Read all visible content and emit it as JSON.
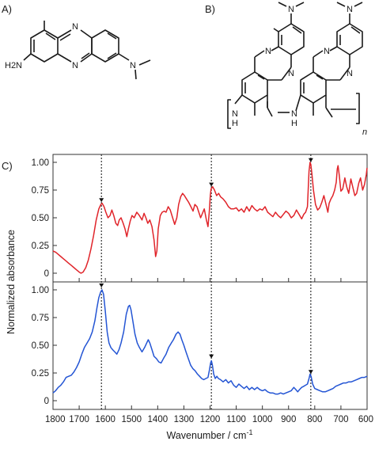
{
  "panels": {
    "a": "A)",
    "b": "B)",
    "c": "C)"
  },
  "molecule_a": {
    "atoms": [
      {
        "id": "ring-n-top",
        "text": "N"
      },
      {
        "id": "ring-n-bottom",
        "text": "N"
      },
      {
        "id": "amine",
        "text": "H2N"
      },
      {
        "id": "dimethylamino",
        "text": "N"
      }
    ]
  },
  "molecule_b": {
    "atoms": [
      {
        "id": "top-n-left",
        "text": "N"
      },
      {
        "id": "top-n-right",
        "text": "N"
      },
      {
        "id": "ring-n-1",
        "text": "N"
      },
      {
        "id": "ring-n-2",
        "text": "N"
      },
      {
        "id": "ring-n-3",
        "text": "N"
      },
      {
        "id": "ring-n-4",
        "text": "N"
      },
      {
        "id": "nh-left",
        "text": "N"
      },
      {
        "id": "nh-left-h",
        "text": "H"
      },
      {
        "id": "nh-mid",
        "text": "N"
      },
      {
        "id": "nh-mid-h",
        "text": "H"
      },
      {
        "id": "repeat-n",
        "text": "n"
      }
    ]
  },
  "chart_data": {
    "type": "line",
    "xlabel": "Wavenumber / cm-1",
    "ylabel": "Normalized absorbance",
    "xlim": [
      1800,
      600
    ],
    "x_reversed": true,
    "x_ticks": [
      1800,
      1700,
      1600,
      1500,
      1400,
      1300,
      1200,
      1100,
      1000,
      900,
      800,
      700,
      600
    ],
    "ylim": [
      0,
      1
    ],
    "y_ticks": [
      0,
      0.25,
      0.5,
      0.75,
      1.0
    ],
    "y_tick_labels": [
      "0",
      "0.25",
      "0.50",
      "0.75",
      "1.00"
    ],
    "grid": false,
    "reference_lines": [
      1615,
      1195,
      815
    ],
    "series": [
      {
        "color": "#e0242a",
        "panel": "top",
        "points": [
          [
            1800,
            0.2
          ],
          [
            1790,
            0.19
          ],
          [
            1780,
            0.17
          ],
          [
            1770,
            0.15
          ],
          [
            1760,
            0.13
          ],
          [
            1750,
            0.11
          ],
          [
            1740,
            0.09
          ],
          [
            1730,
            0.07
          ],
          [
            1720,
            0.05
          ],
          [
            1710,
            0.03
          ],
          [
            1700,
            0.01
          ],
          [
            1693,
            0.0
          ],
          [
            1685,
            0.01
          ],
          [
            1675,
            0.05
          ],
          [
            1665,
            0.12
          ],
          [
            1655,
            0.22
          ],
          [
            1645,
            0.34
          ],
          [
            1635,
            0.48
          ],
          [
            1625,
            0.58
          ],
          [
            1617,
            0.62
          ],
          [
            1612,
            0.63
          ],
          [
            1605,
            0.6
          ],
          [
            1598,
            0.55
          ],
          [
            1590,
            0.5
          ],
          [
            1582,
            0.52
          ],
          [
            1575,
            0.57
          ],
          [
            1568,
            0.52
          ],
          [
            1560,
            0.45
          ],
          [
            1553,
            0.43
          ],
          [
            1547,
            0.48
          ],
          [
            1540,
            0.5
          ],
          [
            1532,
            0.45
          ],
          [
            1525,
            0.4
          ],
          [
            1518,
            0.33
          ],
          [
            1512,
            0.4
          ],
          [
            1505,
            0.47
          ],
          [
            1498,
            0.52
          ],
          [
            1490,
            0.5
          ],
          [
            1480,
            0.55
          ],
          [
            1470,
            0.52
          ],
          [
            1460,
            0.48
          ],
          [
            1452,
            0.54
          ],
          [
            1445,
            0.5
          ],
          [
            1438,
            0.45
          ],
          [
            1430,
            0.48
          ],
          [
            1422,
            0.42
          ],
          [
            1414,
            0.3
          ],
          [
            1408,
            0.15
          ],
          [
            1403,
            0.2
          ],
          [
            1398,
            0.4
          ],
          [
            1390,
            0.52
          ],
          [
            1383,
            0.55
          ],
          [
            1375,
            0.56
          ],
          [
            1368,
            0.55
          ],
          [
            1360,
            0.6
          ],
          [
            1352,
            0.57
          ],
          [
            1343,
            0.5
          ],
          [
            1335,
            0.44
          ],
          [
            1327,
            0.5
          ],
          [
            1320,
            0.62
          ],
          [
            1312,
            0.69
          ],
          [
            1305,
            0.72
          ],
          [
            1298,
            0.7
          ],
          [
            1290,
            0.67
          ],
          [
            1282,
            0.64
          ],
          [
            1273,
            0.6
          ],
          [
            1265,
            0.56
          ],
          [
            1258,
            0.62
          ],
          [
            1250,
            0.6
          ],
          [
            1243,
            0.55
          ],
          [
            1236,
            0.5
          ],
          [
            1229,
            0.54
          ],
          [
            1222,
            0.58
          ],
          [
            1214,
            0.48
          ],
          [
            1208,
            0.42
          ],
          [
            1203,
            0.55
          ],
          [
            1199,
            0.7
          ],
          [
            1196,
            0.76
          ],
          [
            1190,
            0.78
          ],
          [
            1183,
            0.75
          ],
          [
            1175,
            0.7
          ],
          [
            1167,
            0.72
          ],
          [
            1160,
            0.69
          ],
          [
            1150,
            0.67
          ],
          [
            1140,
            0.64
          ],
          [
            1130,
            0.6
          ],
          [
            1120,
            0.58
          ],
          [
            1110,
            0.58
          ],
          [
            1100,
            0.59
          ],
          [
            1090,
            0.56
          ],
          [
            1080,
            0.58
          ],
          [
            1070,
            0.55
          ],
          [
            1060,
            0.6
          ],
          [
            1050,
            0.56
          ],
          [
            1040,
            0.61
          ],
          [
            1030,
            0.58
          ],
          [
            1020,
            0.56
          ],
          [
            1010,
            0.58
          ],
          [
            1000,
            0.57
          ],
          [
            990,
            0.6
          ],
          [
            980,
            0.55
          ],
          [
            970,
            0.53
          ],
          [
            960,
            0.51
          ],
          [
            950,
            0.55
          ],
          [
            940,
            0.52
          ],
          [
            930,
            0.5
          ],
          [
            920,
            0.53
          ],
          [
            910,
            0.56
          ],
          [
            900,
            0.54
          ],
          [
            890,
            0.5
          ],
          [
            880,
            0.52
          ],
          [
            870,
            0.57
          ],
          [
            860,
            0.53
          ],
          [
            850,
            0.49
          ],
          [
            842,
            0.53
          ],
          [
            835,
            0.55
          ],
          [
            828,
            0.6
          ],
          [
            822,
            0.92
          ],
          [
            818,
            1.0
          ],
          [
            815,
            0.98
          ],
          [
            811,
            0.9
          ],
          [
            805,
            0.75
          ],
          [
            797,
            0.62
          ],
          [
            789,
            0.57
          ],
          [
            781,
            0.59
          ],
          [
            773,
            0.64
          ],
          [
            765,
            0.7
          ],
          [
            757,
            0.62
          ],
          [
            750,
            0.55
          ],
          [
            745,
            0.63
          ],
          [
            738,
            0.67
          ],
          [
            731,
            0.7
          ],
          [
            724,
            0.75
          ],
          [
            718,
            0.82
          ],
          [
            714,
            0.94
          ],
          [
            711,
            0.97
          ],
          [
            706,
            0.88
          ],
          [
            700,
            0.74
          ],
          [
            693,
            0.76
          ],
          [
            685,
            0.86
          ],
          [
            678,
            0.78
          ],
          [
            670,
            0.72
          ],
          [
            662,
            0.85
          ],
          [
            655,
            0.78
          ],
          [
            647,
            0.7
          ],
          [
            640,
            0.72
          ],
          [
            632,
            0.81
          ],
          [
            625,
            0.86
          ],
          [
            617,
            0.75
          ],
          [
            610,
            0.8
          ],
          [
            603,
            0.89
          ],
          [
            600,
            0.95
          ]
        ]
      },
      {
        "color": "#2455d4",
        "panel": "bottom",
        "points": [
          [
            1800,
            0.07
          ],
          [
            1790,
            0.09
          ],
          [
            1780,
            0.12
          ],
          [
            1770,
            0.14
          ],
          [
            1760,
            0.17
          ],
          [
            1750,
            0.21
          ],
          [
            1740,
            0.22
          ],
          [
            1730,
            0.23
          ],
          [
            1720,
            0.26
          ],
          [
            1710,
            0.3
          ],
          [
            1700,
            0.35
          ],
          [
            1690,
            0.42
          ],
          [
            1680,
            0.48
          ],
          [
            1670,
            0.52
          ],
          [
            1660,
            0.56
          ],
          [
            1650,
            0.62
          ],
          [
            1640,
            0.72
          ],
          [
            1632,
            0.84
          ],
          [
            1625,
            0.93
          ],
          [
            1618,
            0.98
          ],
          [
            1613,
            1.0
          ],
          [
            1607,
            0.96
          ],
          [
            1600,
            0.8
          ],
          [
            1593,
            0.62
          ],
          [
            1586,
            0.52
          ],
          [
            1579,
            0.48
          ],
          [
            1572,
            0.46
          ],
          [
            1564,
            0.44
          ],
          [
            1556,
            0.42
          ],
          [
            1548,
            0.46
          ],
          [
            1540,
            0.52
          ],
          [
            1530,
            0.62
          ],
          [
            1520,
            0.78
          ],
          [
            1512,
            0.85
          ],
          [
            1507,
            0.86
          ],
          [
            1502,
            0.82
          ],
          [
            1495,
            0.72
          ],
          [
            1487,
            0.6
          ],
          [
            1478,
            0.52
          ],
          [
            1470,
            0.48
          ],
          [
            1460,
            0.44
          ],
          [
            1450,
            0.48
          ],
          [
            1442,
            0.52
          ],
          [
            1436,
            0.55
          ],
          [
            1430,
            0.52
          ],
          [
            1422,
            0.46
          ],
          [
            1414,
            0.4
          ],
          [
            1405,
            0.38
          ],
          [
            1396,
            0.35
          ],
          [
            1387,
            0.34
          ],
          [
            1378,
            0.38
          ],
          [
            1368,
            0.42
          ],
          [
            1358,
            0.48
          ],
          [
            1348,
            0.52
          ],
          [
            1340,
            0.55
          ],
          [
            1330,
            0.6
          ],
          [
            1322,
            0.62
          ],
          [
            1315,
            0.6
          ],
          [
            1308,
            0.55
          ],
          [
            1300,
            0.5
          ],
          [
            1292,
            0.44
          ],
          [
            1283,
            0.38
          ],
          [
            1274,
            0.32
          ],
          [
            1266,
            0.29
          ],
          [
            1257,
            0.27
          ],
          [
            1248,
            0.24
          ],
          [
            1240,
            0.22
          ],
          [
            1232,
            0.2
          ],
          [
            1224,
            0.19
          ],
          [
            1216,
            0.2
          ],
          [
            1208,
            0.21
          ],
          [
            1202,
            0.28
          ],
          [
            1198,
            0.34
          ],
          [
            1195,
            0.36
          ],
          [
            1191,
            0.32
          ],
          [
            1186,
            0.24
          ],
          [
            1180,
            0.2
          ],
          [
            1174,
            0.22
          ],
          [
            1168,
            0.2
          ],
          [
            1160,
            0.19
          ],
          [
            1150,
            0.17
          ],
          [
            1140,
            0.19
          ],
          [
            1130,
            0.16
          ],
          [
            1120,
            0.18
          ],
          [
            1110,
            0.14
          ],
          [
            1100,
            0.12
          ],
          [
            1090,
            0.15
          ],
          [
            1080,
            0.13
          ],
          [
            1070,
            0.11
          ],
          [
            1060,
            0.13
          ],
          [
            1050,
            0.1
          ],
          [
            1040,
            0.12
          ],
          [
            1030,
            0.1
          ],
          [
            1020,
            0.12
          ],
          [
            1010,
            0.1
          ],
          [
            1000,
            0.09
          ],
          [
            990,
            0.1
          ],
          [
            980,
            0.08
          ],
          [
            970,
            0.07
          ],
          [
            960,
            0.07
          ],
          [
            950,
            0.06
          ],
          [
            940,
            0.06
          ],
          [
            930,
            0.07
          ],
          [
            920,
            0.06
          ],
          [
            910,
            0.07
          ],
          [
            900,
            0.08
          ],
          [
            890,
            0.09
          ],
          [
            880,
            0.12
          ],
          [
            872,
            0.1
          ],
          [
            865,
            0.08
          ],
          [
            858,
            0.1
          ],
          [
            850,
            0.12
          ],
          [
            842,
            0.13
          ],
          [
            835,
            0.14
          ],
          [
            828,
            0.15
          ],
          [
            822,
            0.2
          ],
          [
            818,
            0.24
          ],
          [
            814,
            0.22
          ],
          [
            808,
            0.15
          ],
          [
            800,
            0.11
          ],
          [
            790,
            0.1
          ],
          [
            780,
            0.09
          ],
          [
            770,
            0.08
          ],
          [
            760,
            0.08
          ],
          [
            750,
            0.09
          ],
          [
            740,
            0.1
          ],
          [
            730,
            0.11
          ],
          [
            720,
            0.13
          ],
          [
            710,
            0.14
          ],
          [
            700,
            0.15
          ],
          [
            690,
            0.16
          ],
          [
            680,
            0.16
          ],
          [
            670,
            0.17
          ],
          [
            660,
            0.17
          ],
          [
            650,
            0.18
          ],
          [
            640,
            0.19
          ],
          [
            630,
            0.2
          ],
          [
            620,
            0.21
          ],
          [
            610,
            0.21
          ],
          [
            600,
            0.22
          ]
        ]
      }
    ]
  }
}
